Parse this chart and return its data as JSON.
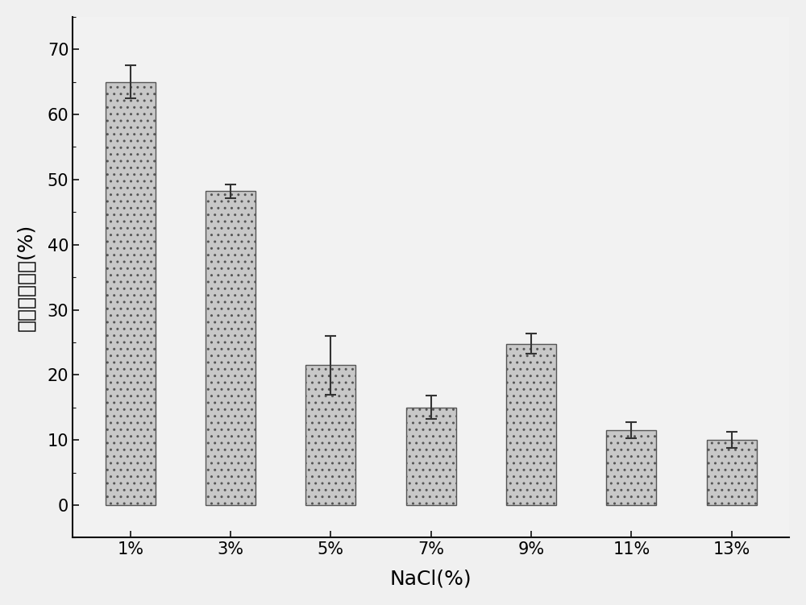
{
  "categories": [
    "1%",
    "3%",
    "5%",
    "7%",
    "9%",
    "11%",
    "13%"
  ],
  "values": [
    65.0,
    48.2,
    21.5,
    15.0,
    24.8,
    11.5,
    10.0
  ],
  "errors": [
    2.5,
    1.0,
    4.5,
    1.8,
    1.5,
    1.2,
    1.2
  ],
  "bar_color": "#C8C8C8",
  "bar_edgecolor": "#555555",
  "xlabel": "NaCl(%)",
  "ylabel": "生物胺降解率(%)",
  "ylim": [
    -5,
    75
  ],
  "yticks": [
    0,
    10,
    20,
    30,
    40,
    50,
    60,
    70
  ],
  "background_color": "#F5F5F5",
  "plot_bg_color": "#F5F5F5",
  "bar_width": 0.5,
  "axis_fontsize": 18,
  "tick_fontsize": 15,
  "errorbar_capsize": 5,
  "errorbar_color": "#333333",
  "errorbar_linewidth": 1.5,
  "spine_color": "#111111",
  "tick_color": "#111111"
}
